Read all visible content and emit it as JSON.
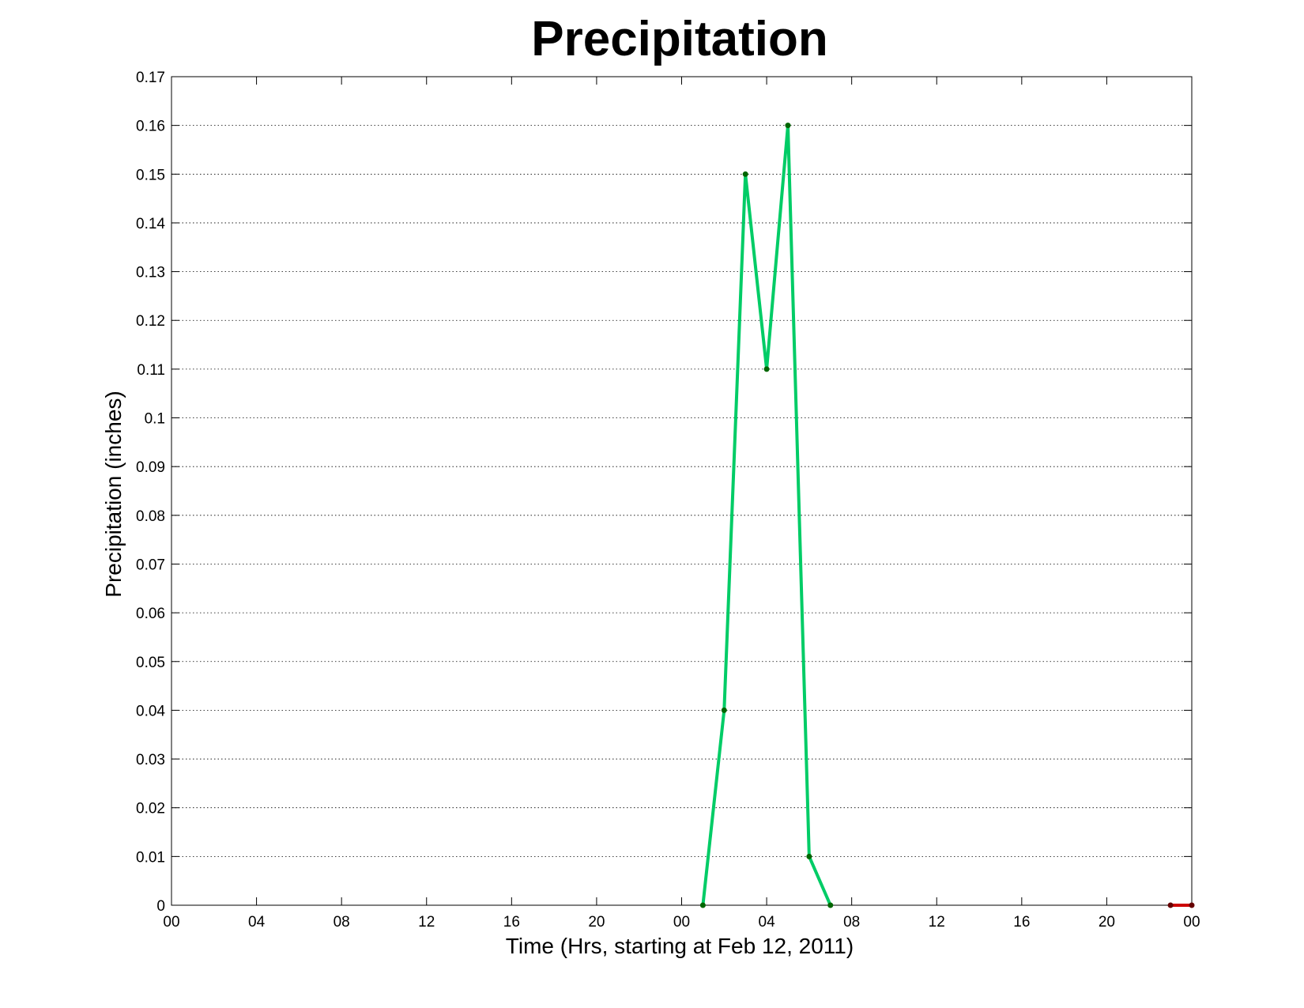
{
  "chart_data": {
    "type": "line",
    "title": "Precipitation",
    "xlabel": "Time (Hrs, starting at Feb 12, 2011)",
    "ylabel": "Precipitation (inches)",
    "x_unit": "hours",
    "xlim": [
      0,
      48
    ],
    "ylim": [
      0,
      0.17
    ],
    "x_ticks": [
      0,
      4,
      8,
      12,
      16,
      20,
      24,
      28,
      32,
      36,
      40,
      44,
      48
    ],
    "x_tick_labels": [
      "00",
      "04",
      "08",
      "12",
      "16",
      "20",
      "00",
      "04",
      "08",
      "12",
      "16",
      "20",
      "00"
    ],
    "y_ticks": [
      0,
      0.01,
      0.02,
      0.03,
      0.04,
      0.05,
      0.06,
      0.07,
      0.08,
      0.09,
      0.1,
      0.11,
      0.12,
      0.13,
      0.14,
      0.15,
      0.16,
      0.17
    ],
    "y_tick_labels": [
      "0",
      "0.01",
      "0.02",
      "0.03",
      "0.04",
      "0.05",
      "0.06",
      "0.07",
      "0.08",
      "0.09",
      "0.1",
      "0.11",
      "0.12",
      "0.13",
      "0.14",
      "0.15",
      "0.16",
      "0.17"
    ],
    "grid": "horizontal-dotted",
    "legend": "none",
    "series": [
      {
        "color": "#00cc66",
        "marker_color": "#006600",
        "x": [
          25,
          26,
          27,
          28,
          29,
          30,
          31
        ],
        "y": [
          0,
          0.04,
          0.15,
          0.11,
          0.16,
          0.01,
          0
        ]
      },
      {
        "color": "#cc0000",
        "marker_color": "#660000",
        "x": [
          47,
          48
        ],
        "y": [
          0,
          0
        ]
      }
    ]
  }
}
